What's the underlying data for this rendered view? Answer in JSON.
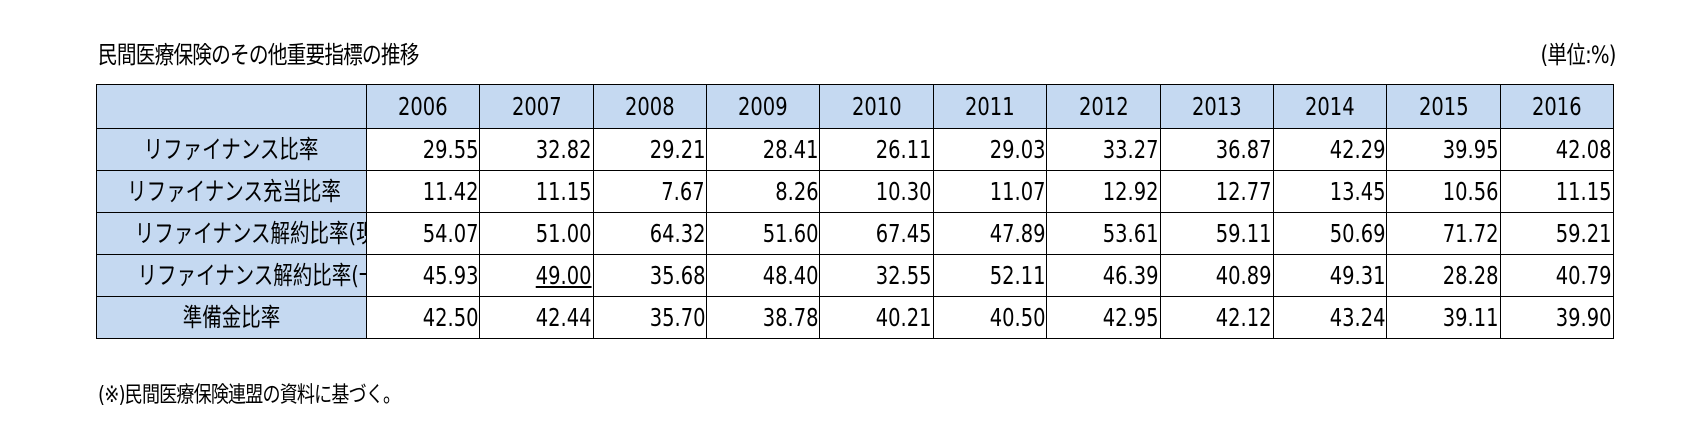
{
  "title": "民間医療保険のその他重要指標の推移",
  "unit": "(単位:%)",
  "years": [
    "2006",
    "2007",
    "2008",
    "2009",
    "2010",
    "2011",
    "2012",
    "2013",
    "2014",
    "2015",
    "2016"
  ],
  "rows": [
    {
      "label": "リファイナンス比率",
      "values": [
        "29.55",
        "32.82",
        "29.21",
        "28.41",
        "26.11",
        "29.03",
        "33.27",
        "36.87",
        "42.29",
        "39.95",
        "42.08"
      ]
    },
    {
      "label": "リファイナンス充当比率",
      "values": [
        "11.42",
        "11.15",
        "7.67",
        "8.26",
        "10.30",
        "11.07",
        "12.92",
        "12.77",
        "13.45",
        "10.56",
        "11.15"
      ]
    },
    {
      "label": "リファイナンス解約比率(現金)",
      "values": [
        "54.07",
        "51.00",
        "64.32",
        "51.60",
        "67.45",
        "47.89",
        "53.61",
        "59.11",
        "50.69",
        "71.72",
        "59.21"
      ]
    },
    {
      "label": "リファイナンス解約比率(一時金)",
      "values": [
        "45.93",
        "49.00",
        "35.68",
        "48.40",
        "32.55",
        "52.11",
        "46.39",
        "40.89",
        "49.31",
        "28.28",
        "40.79"
      ]
    },
    {
      "label": "準備金比率",
      "values": [
        "42.50",
        "42.44",
        "35.70",
        "38.78",
        "40.21",
        "40.50",
        "42.95",
        "42.12",
        "43.24",
        "39.11",
        "39.90"
      ]
    }
  ],
  "note": "(※)民間医療保険連盟の資料に基づく。",
  "colors": {
    "header_fill": "#c5d9f1",
    "border": "#000000"
  }
}
